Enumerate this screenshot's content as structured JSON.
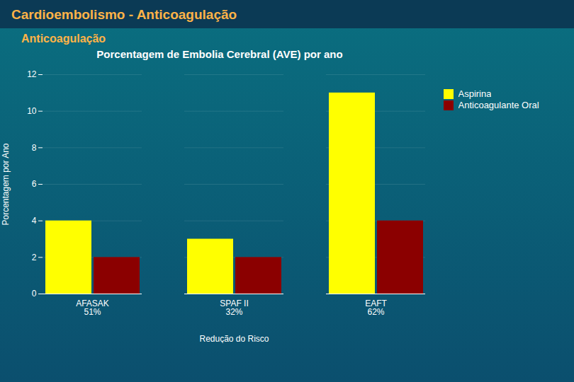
{
  "chart_data": {
    "type": "bar",
    "title": "Porcentagem de Embolia Cerebral (AVE) por ano",
    "subtitle": "Anticoagulação",
    "annotations": [
      "Cardioembolismo - Anticoagulação"
    ],
    "xlabel": "Redução do Risco",
    "ylabel": "Porcentagem por Ano",
    "categories": [
      "AFASAK\n51%",
      "SPAF II\n32%",
      "EAFT\n62%"
    ],
    "series": [
      {
        "name": "Aspirina",
        "color": "#FFFF00",
        "values": [
          4.0,
          3.0,
          11.0
        ]
      },
      {
        "name": "Anticoagulante Oral",
        "color": "#8B0000",
        "values": [
          2.0,
          2.0,
          4.0
        ]
      }
    ],
    "ylim": [
      0,
      12
    ],
    "yticks": [
      0,
      2,
      4,
      6,
      8,
      10,
      12
    ],
    "grid": true,
    "legend": "right"
  }
}
